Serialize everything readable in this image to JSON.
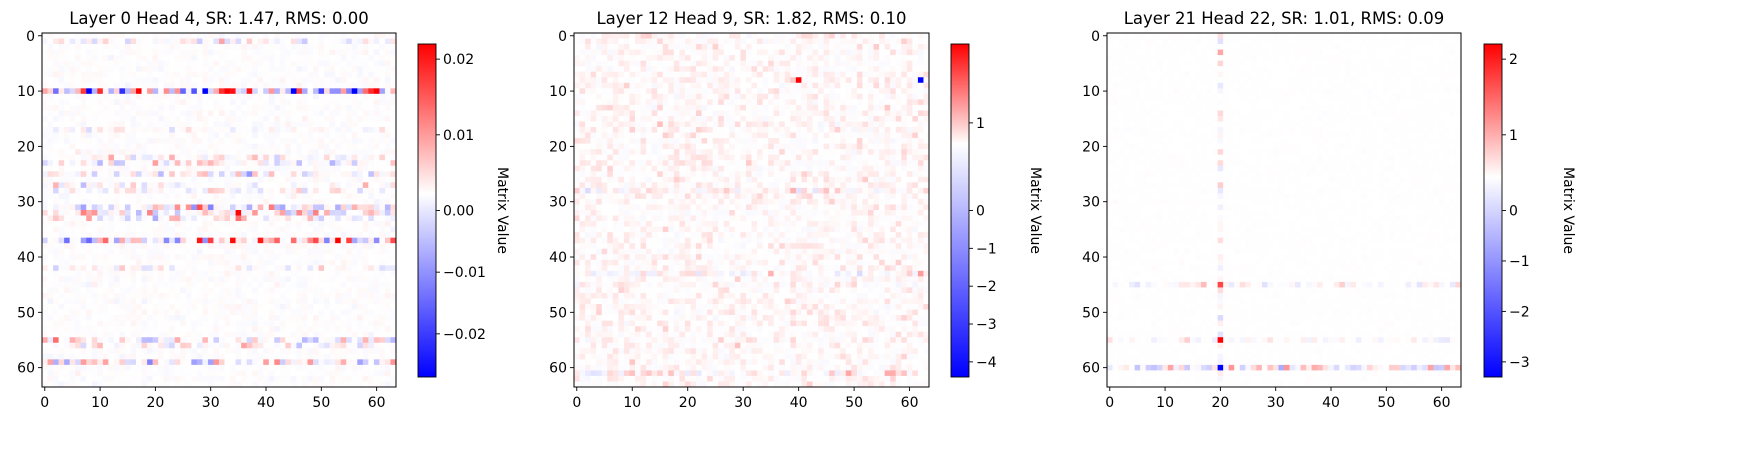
{
  "chart_data": [
    {
      "type": "heatmap",
      "title": "Layer 0 Head 4, SR: 1.47, RMS: 0.00",
      "matrix_size": 64,
      "x_ticks": [
        0,
        10,
        20,
        30,
        40,
        50,
        60
      ],
      "y_ticks": [
        0,
        10,
        20,
        30,
        40,
        50,
        60
      ],
      "colormap": "bwr",
      "colorbar_label": "Matrix Value",
      "vmin": -0.027,
      "vmax": 0.022,
      "colorbar_ticks": [
        {
          "value": 0.02,
          "label": "0.02"
        },
        {
          "value": 0.01,
          "label": "0.01"
        },
        {
          "value": 0.0,
          "label": "0.00"
        },
        {
          "value": -0.01,
          "label": "−0.01"
        },
        {
          "value": -0.02,
          "label": "−0.02"
        }
      ],
      "pattern": "row-dominant",
      "seed": 11,
      "active_rows": [
        {
          "row": 1,
          "amp": 0.003,
          "density": 0.6
        },
        {
          "row": 10,
          "amp": 0.012,
          "density": 0.9
        },
        {
          "row": 17,
          "amp": 0.002,
          "density": 0.5
        },
        {
          "row": 22,
          "amp": 0.003,
          "density": 0.6
        },
        {
          "row": 23,
          "amp": 0.004,
          "density": 0.7
        },
        {
          "row": 25,
          "amp": 0.004,
          "density": 0.7
        },
        {
          "row": 27,
          "amp": 0.003,
          "density": 0.6
        },
        {
          "row": 28,
          "amp": 0.003,
          "density": 0.6
        },
        {
          "row": 31,
          "amp": 0.005,
          "density": 0.8
        },
        {
          "row": 32,
          "amp": 0.006,
          "density": 0.8
        },
        {
          "row": 33,
          "amp": 0.004,
          "density": 0.7
        },
        {
          "row": 37,
          "amp": 0.01,
          "density": 0.9
        },
        {
          "row": 42,
          "amp": 0.003,
          "density": 0.6
        },
        {
          "row": 55,
          "amp": 0.004,
          "density": 0.7
        },
        {
          "row": 56,
          "amp": 0.003,
          "density": 0.6
        },
        {
          "row": 59,
          "amp": 0.005,
          "density": 0.8
        }
      ],
      "active_cols": [],
      "background_amp": 0.0008,
      "extremes": [
        {
          "row": 10,
          "col": 8,
          "value": -0.027
        },
        {
          "row": 10,
          "col": 60,
          "value": 0.022
        },
        {
          "row": 10,
          "col": 37,
          "value": 0.02
        },
        {
          "row": 10,
          "col": 50,
          "value": -0.02
        },
        {
          "row": 10,
          "col": 27,
          "value": -0.018
        },
        {
          "row": 37,
          "col": 8,
          "value": -0.016
        },
        {
          "row": 10,
          "col": 2,
          "value": -0.015
        },
        {
          "row": 10,
          "col": 46,
          "value": 0.016
        }
      ]
    },
    {
      "type": "heatmap",
      "title": "Layer 12 Head 9, SR: 1.82, RMS: 0.10",
      "matrix_size": 64,
      "x_ticks": [
        0,
        10,
        20,
        30,
        40,
        50,
        60
      ],
      "y_ticks": [
        0,
        10,
        20,
        30,
        40,
        50,
        60
      ],
      "colormap": "bwr",
      "colorbar_label": "Matrix Value",
      "vmin": -4.4,
      "vmax": 1.9,
      "colorbar_ticks": [
        {
          "value": 1,
          "label": "1"
        },
        {
          "value": 0,
          "label": "0"
        },
        {
          "value": -1,
          "label": "−1"
        },
        {
          "value": -2,
          "label": "−2"
        },
        {
          "value": -3,
          "label": "−3"
        },
        {
          "value": -4,
          "label": "−4"
        }
      ],
      "pattern": "scattered-positive",
      "seed": 23,
      "active_rows": [
        {
          "row": 28,
          "amp": 0.25,
          "density": 0.7
        },
        {
          "row": 43,
          "amp": 0.2,
          "density": 0.6
        },
        {
          "row": 61,
          "amp": 0.25,
          "density": 0.7
        }
      ],
      "active_cols": [],
      "background_amp": 0.22,
      "extremes": [
        {
          "row": 8,
          "col": 40,
          "value": 1.9
        },
        {
          "row": 8,
          "col": 62,
          "value": -4.4
        }
      ]
    },
    {
      "type": "heatmap",
      "title": "Layer 21 Head 22, SR: 1.01, RMS: 0.09",
      "matrix_size": 64,
      "x_ticks": [
        0,
        10,
        20,
        30,
        40,
        50,
        60
      ],
      "y_ticks": [
        0,
        10,
        20,
        30,
        40,
        50,
        60
      ],
      "colormap": "bwr",
      "colorbar_label": "Matrix Value",
      "vmin": -3.3,
      "vmax": 2.2,
      "colorbar_ticks": [
        {
          "value": 2,
          "label": "2"
        },
        {
          "value": 1,
          "label": "1"
        },
        {
          "value": 0,
          "label": "0"
        },
        {
          "value": -1,
          "label": "−1"
        },
        {
          "value": -2,
          "label": "−2"
        },
        {
          "value": -3,
          "label": "−3"
        }
      ],
      "pattern": "cross",
      "seed": 37,
      "active_rows": [
        {
          "row": 45,
          "amp": 0.18,
          "density": 0.8
        },
        {
          "row": 55,
          "amp": 0.15,
          "density": 0.7
        },
        {
          "row": 60,
          "amp": 0.4,
          "density": 0.9
        }
      ],
      "active_cols": [
        {
          "col": 20,
          "amp": 0.2,
          "density": 0.7
        }
      ],
      "background_amp": 0.02,
      "extremes": [
        {
          "row": 45,
          "col": 20,
          "value": 1.6
        },
        {
          "row": 55,
          "col": 20,
          "value": 2.2
        },
        {
          "row": 60,
          "col": 20,
          "value": -3.3
        },
        {
          "row": 5,
          "col": 20,
          "value": 0.35
        }
      ]
    }
  ]
}
